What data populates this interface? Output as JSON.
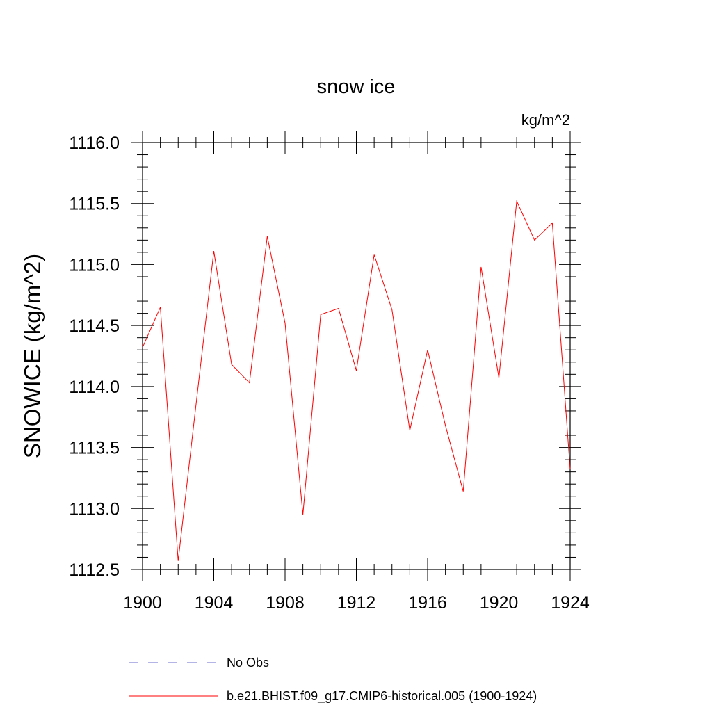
{
  "chart_data": {
    "type": "line",
    "title": "snow ice",
    "units": "kg/m^2",
    "ylabel": "SNOWICE  (kg/m^2)",
    "xlabel": "",
    "xlim": [
      1900,
      1924
    ],
    "ylim": [
      1112.5,
      1116.0
    ],
    "x_ticks": [
      1900,
      1904,
      1908,
      1912,
      1916,
      1920,
      1924
    ],
    "x_tick_labels": [
      "1900",
      "1904",
      "1908",
      "1912",
      "1916",
      "1920",
      "1924"
    ],
    "y_ticks": [
      1112.5,
      1113.0,
      1113.5,
      1114.0,
      1114.5,
      1115.0,
      1115.5,
      1116.0
    ],
    "y_tick_labels": [
      "1112.5",
      "1113.0",
      "1113.5",
      "1114.0",
      "1114.5",
      "1115.0",
      "1115.5",
      "1116.0"
    ],
    "grid": false,
    "legend_position": "bottom",
    "series": [
      {
        "name": "b.e21.BHIST.f09_g17.CMIP6-historical.005 (1900-1924)",
        "color": "#ff0000",
        "style": "solid",
        "x": [
          1900,
          1901,
          1902,
          1903,
          1904,
          1905,
          1906,
          1907,
          1908,
          1909,
          1910,
          1911,
          1912,
          1913,
          1914,
          1915,
          1916,
          1917,
          1918,
          1919,
          1920,
          1921,
          1922,
          1923,
          1924
        ],
        "values": [
          1114.32,
          1114.65,
          1112.57,
          1113.85,
          1115.11,
          1114.18,
          1114.03,
          1115.23,
          1114.52,
          1112.95,
          1114.59,
          1114.64,
          1114.13,
          1115.08,
          1114.63,
          1113.64,
          1114.3,
          1113.68,
          1113.14,
          1114.98,
          1114.07,
          1115.52,
          1115.2,
          1115.34,
          1113.32
        ]
      }
    ],
    "legend": [
      {
        "label": "No Obs",
        "color": "#6a6acd",
        "style": "dashed"
      },
      {
        "label": "b.e21.BHIST.f09_g17.CMIP6-historical.005 (1900-1924)",
        "color": "#ff0000",
        "style": "solid"
      }
    ]
  }
}
